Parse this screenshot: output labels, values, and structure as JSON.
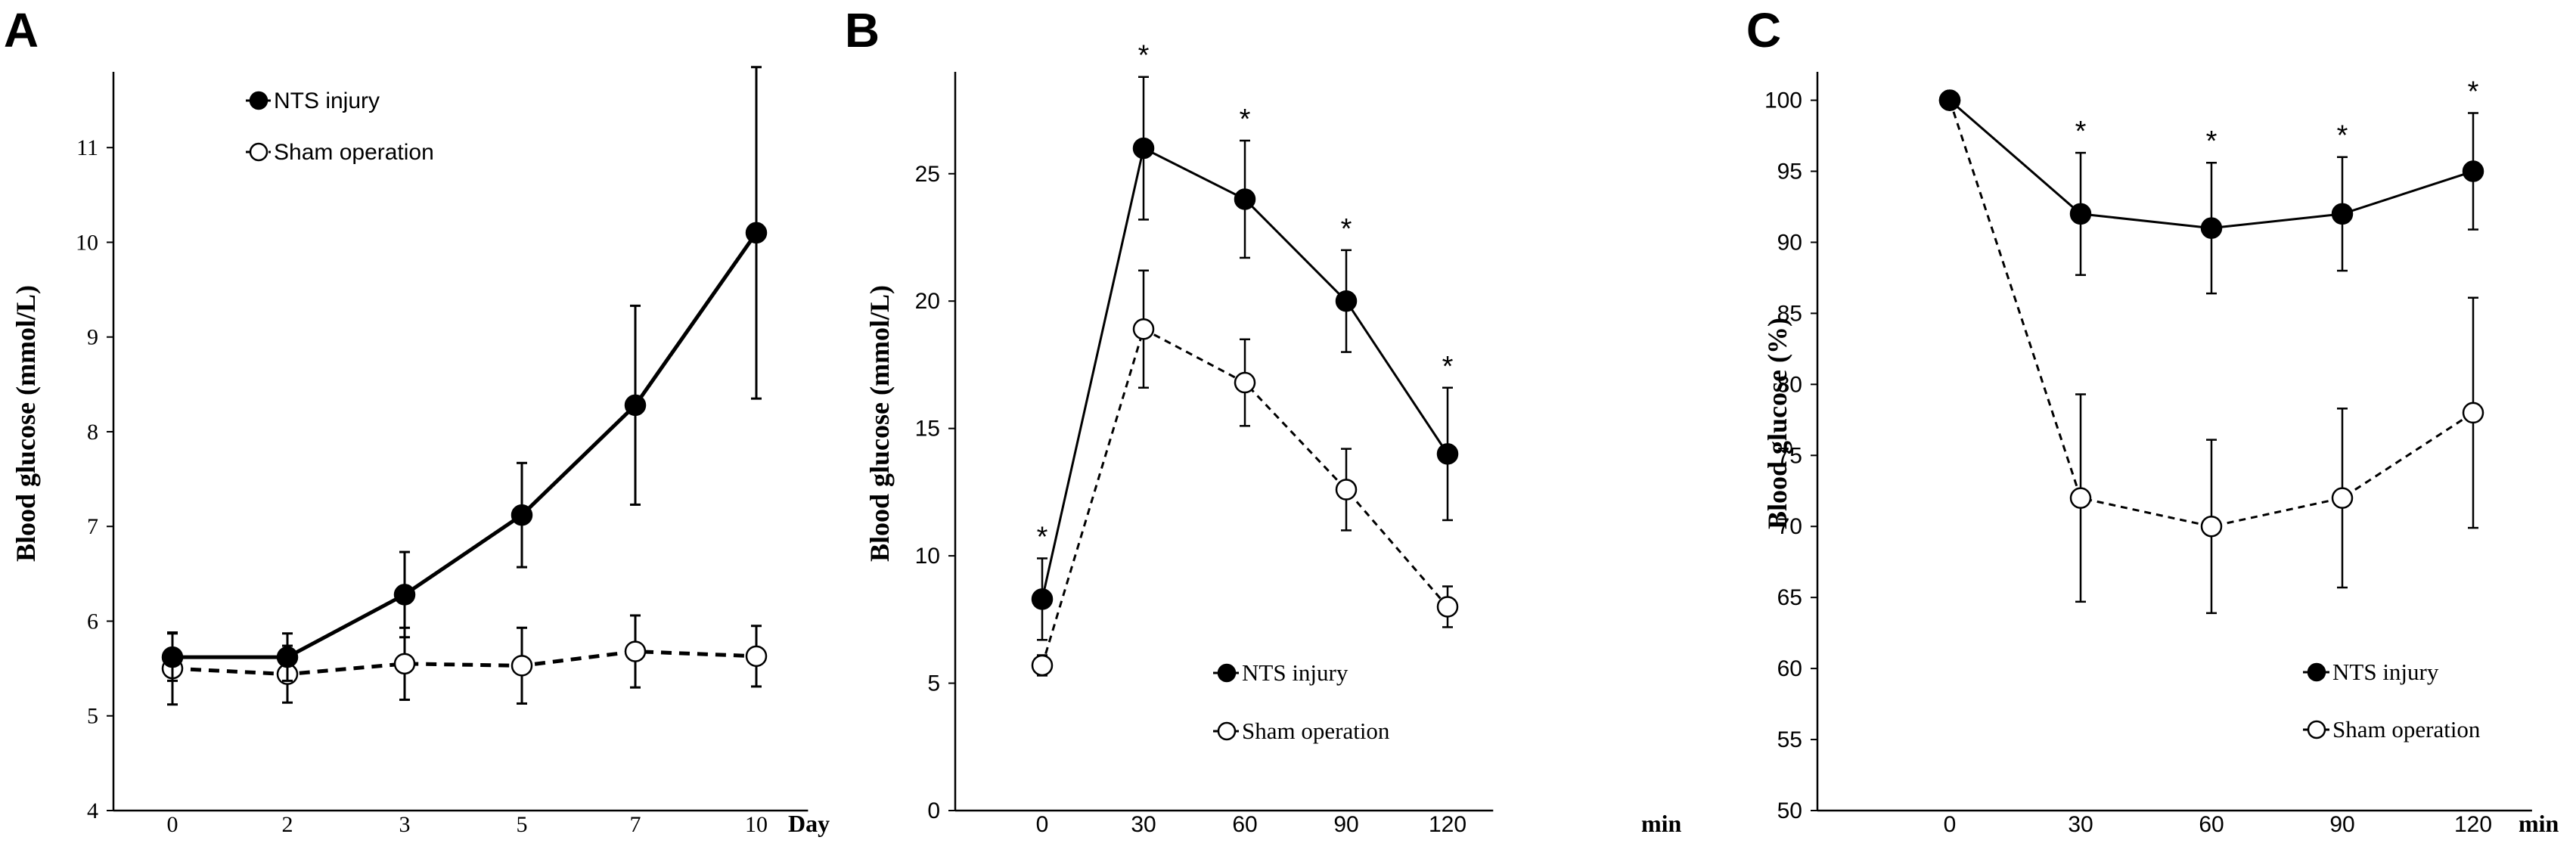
{
  "chart_data": [
    {
      "type": "line",
      "panel_label": "A",
      "title": "",
      "ylabel": "Blood glucose (mmol/L)",
      "xlabel": "Day",
      "ylim": [
        4,
        11.8
      ],
      "yticks": [
        4,
        5,
        6,
        7,
        8,
        9,
        10,
        11
      ],
      "categories": [
        "0",
        "2",
        "3",
        "5",
        "7",
        "10"
      ],
      "series": [
        {
          "name": "NTS injury",
          "marker": "filled",
          "line": "solid",
          "values": [
            5.62,
            5.62,
            6.28,
            7.12,
            8.28,
            10.1
          ],
          "errors": [
            0.25,
            0.25,
            0.45,
            0.55,
            1.05,
            1.75
          ]
        },
        {
          "name": "Sham operation",
          "marker": "open",
          "line": "dashed",
          "values": [
            5.5,
            5.44,
            5.55,
            5.53,
            5.68,
            5.63
          ],
          "errors": [
            0.38,
            0.3,
            0.38,
            0.4,
            0.38,
            0.32
          ]
        }
      ],
      "significance": [],
      "legend": "top-left"
    },
    {
      "type": "line",
      "panel_label": "B",
      "title": "",
      "ylabel": "Blood glucose (mmol/L)",
      "xlabel": "min",
      "ylim": [
        0,
        29
      ],
      "yticks": [
        0,
        5,
        10,
        15,
        20,
        25
      ],
      "categories": [
        "0",
        "30",
        "60",
        "90",
        "120"
      ],
      "series": [
        {
          "name": "NTS injury",
          "marker": "filled",
          "line": "solid",
          "values": [
            8.3,
            26,
            24,
            20,
            14
          ],
          "errors": [
            1.6,
            2.8,
            2.3,
            2.0,
            2.6
          ]
        },
        {
          "name": "Sham operation",
          "marker": "open",
          "line": "dashed",
          "values": [
            5.7,
            18.9,
            16.8,
            12.6,
            8.0
          ],
          "errors": [
            0.4,
            2.3,
            1.7,
            1.6,
            0.8
          ]
        }
      ],
      "significance": [
        "*",
        "*",
        "*",
        "*",
        "*"
      ],
      "legend": "bottom-center"
    },
    {
      "type": "line",
      "panel_label": "C",
      "title": "",
      "ylabel": "Blood glucose (%)",
      "xlabel": "min",
      "ylim": [
        50,
        102
      ],
      "yticks": [
        50,
        55,
        60,
        65,
        70,
        75,
        80,
        85,
        90,
        95,
        100
      ],
      "categories": [
        "0",
        "30",
        "60",
        "90",
        "120"
      ],
      "series": [
        {
          "name": "NTS injury",
          "marker": "filled",
          "line": "solid",
          "values": [
            100,
            92,
            91,
            92,
            95
          ],
          "errors": [
            0,
            4.3,
            4.6,
            4.0,
            4.1
          ]
        },
        {
          "name": "Sham operation",
          "marker": "open",
          "line": "dashed",
          "values": [
            100,
            72,
            70,
            72,
            78
          ],
          "errors": [
            0,
            7.3,
            6.1,
            6.3,
            8.1
          ]
        }
      ],
      "significance": [
        "",
        "*",
        "*",
        "*",
        "*"
      ],
      "legend": "bottom-right"
    }
  ]
}
